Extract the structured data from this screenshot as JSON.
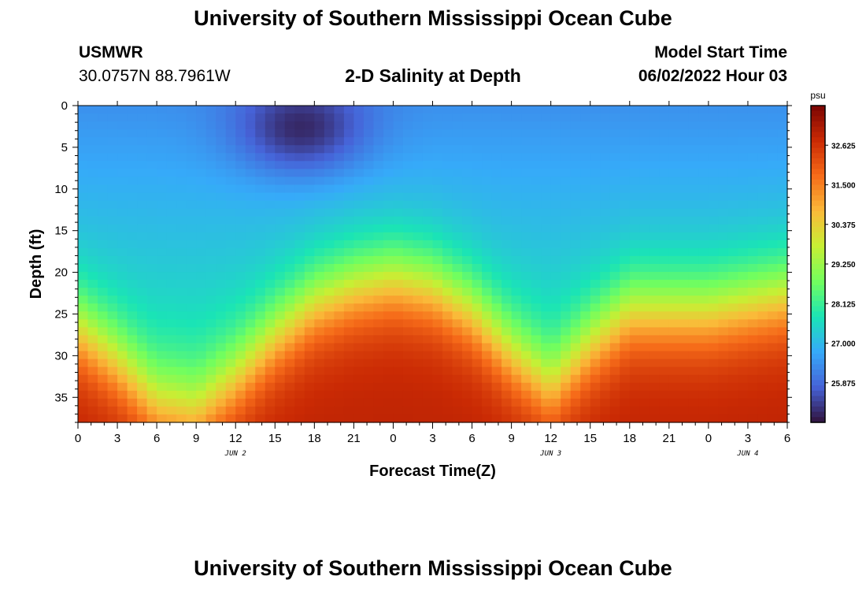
{
  "header": {
    "main_title": "University of Southern Mississippi Ocean Cube",
    "station_id": "USMWR",
    "station_coords": "30.0757N  88.7961W",
    "chart_title": "2-D Salinity at Depth",
    "start_label": "Model Start Time",
    "start_value": "06/02/2022 Hour 03"
  },
  "footer": {
    "title": "University of Southern Mississippi Ocean Cube"
  },
  "chart_data": {
    "type": "heatmap",
    "title": "2-D Salinity at Depth",
    "xlabel": "Forecast Time(Z)",
    "ylabel": "Depth (ft)",
    "x_tick_labels": [
      "0",
      "3",
      "6",
      "9",
      "12",
      "15",
      "18",
      "21",
      "0",
      "3",
      "6",
      "9",
      "12",
      "15",
      "18",
      "21",
      "0",
      "3",
      "6"
    ],
    "x_date_labels": [
      {
        "text": "JUN 2",
        "tick_index": 4
      },
      {
        "text": "JUN 3",
        "tick_index": 12
      },
      {
        "text": "JUN 4",
        "tick_index": 17
      }
    ],
    "x_range_hours": [
      0,
      54
    ],
    "y_tick_labels": [
      "0",
      "5",
      "10",
      "15",
      "20",
      "25",
      "30",
      "35"
    ],
    "y_ticks": [
      0,
      5,
      10,
      15,
      20,
      25,
      30,
      35
    ],
    "ylim": [
      0,
      38
    ],
    "y_inverted": true,
    "colorbar": {
      "unit": "psu",
      "min": 24.75,
      "max": 33.75,
      "tick_values": [
        32.625,
        31.5,
        30.375,
        29.25,
        28.125,
        27.0,
        25.875
      ],
      "tick_labels": [
        "32.625",
        "31.500",
        "30.375",
        "29.250",
        "28.125",
        "27.000",
        "25.875"
      ],
      "colormap": [
        "#30123b",
        "#4662d7",
        "#36aaf9",
        "#1ae4b6",
        "#72fe5e",
        "#c7ef34",
        "#faba39",
        "#f66b19",
        "#ca2a04",
        "#7a0403"
      ]
    },
    "field_model": {
      "description_of_pattern": "Halocline depth (ft) where salinity transitions from ~26.5 psu (upper) to ~32.5 psu (lower), per forecast hour",
      "halocline_hours": [
        0,
        3,
        6,
        9,
        12,
        15,
        18,
        21,
        24,
        27,
        30,
        33,
        36,
        39,
        42,
        45,
        48,
        51,
        54
      ],
      "halocline_depths": [
        27,
        31,
        36,
        37,
        33,
        28,
        24,
        22,
        21,
        22,
        25,
        30,
        34,
        29,
        25,
        25,
        25,
        24,
        23
      ],
      "fresh_core": {
        "hour": 17,
        "depth": 3,
        "min_value": 24.9
      }
    }
  }
}
